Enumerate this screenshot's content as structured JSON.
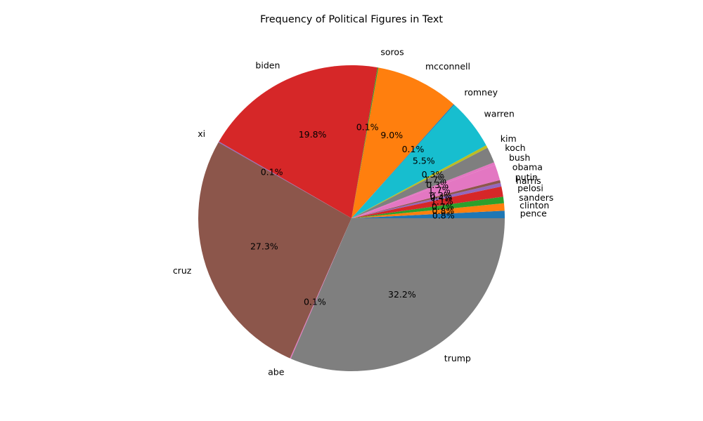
{
  "chart_data": {
    "type": "pie",
    "title": "Frequency of Political Figures in Text",
    "start_angle_deg": 0,
    "direction": "counterclockwise",
    "autopct_format": "{:.1f}%",
    "slices": [
      {
        "label": "pence",
        "value": 0.8,
        "color": "#1f77b4"
      },
      {
        "label": "clinton",
        "value": 0.8,
        "color": "#ff7f0e"
      },
      {
        "label": "sanders",
        "value": 0.7,
        "color": "#2ca02c"
      },
      {
        "label": "pelosi",
        "value": 1.1,
        "color": "#d62728"
      },
      {
        "label": "harris",
        "value": 0.4,
        "color": "#9467bd"
      },
      {
        "label": "putin",
        "value": 0.3,
        "color": "#8c564b"
      },
      {
        "label": "obama",
        "value": 1.7,
        "color": "#e377c2"
      },
      {
        "label": "bush",
        "value": 0.3,
        "color": "#e377c2"
      },
      {
        "label": "koch",
        "value": 1.7,
        "color": "#7f7f7f"
      },
      {
        "label": "kim",
        "value": 0.3,
        "color": "#bcbd22"
      },
      {
        "label": "warren",
        "value": 5.5,
        "color": "#17becf"
      },
      {
        "label": "romney",
        "value": 0.1,
        "color": "#1f77b4"
      },
      {
        "label": "mcconnell",
        "value": 9.0,
        "color": "#ff7f0e"
      },
      {
        "label": "soros",
        "value": 0.1,
        "color": "#2ca02c"
      },
      {
        "label": "biden",
        "value": 19.8,
        "color": "#d62728"
      },
      {
        "label": "xi",
        "value": 0.1,
        "color": "#9467bd"
      },
      {
        "label": "cruz",
        "value": 27.3,
        "color": "#8c564b"
      },
      {
        "label": "abe",
        "value": 0.1,
        "color": "#e377c2"
      },
      {
        "label": "trump",
        "value": 32.2,
        "color": "#7f7f7f"
      }
    ]
  }
}
